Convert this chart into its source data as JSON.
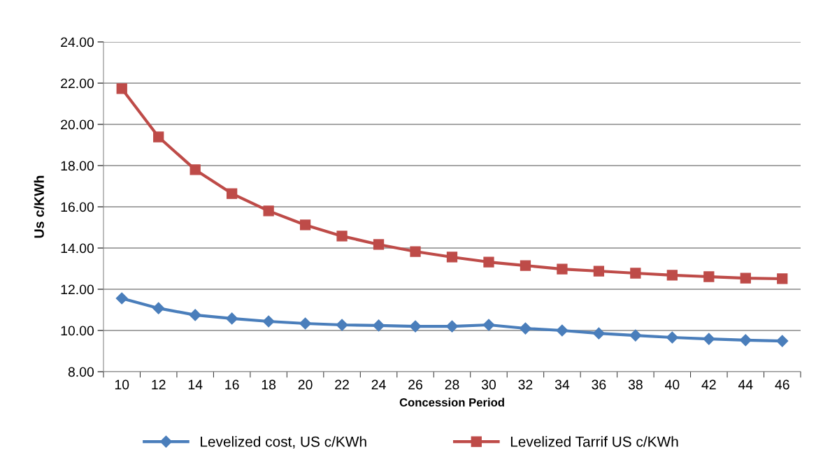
{
  "chart_data": {
    "type": "line",
    "xlabel": "Concession Period",
    "ylabel": "Us c/KWh",
    "categories": [
      "10",
      "12",
      "14",
      "16",
      "18",
      "20",
      "22",
      "24",
      "26",
      "28",
      "30",
      "32",
      "34",
      "36",
      "38",
      "40",
      "42",
      "44",
      "46"
    ],
    "series": [
      {
        "name": "Levelized cost, US c/KWh",
        "color": "#4a7ebb",
        "marker": "diamond",
        "values": [
          11.56,
          11.08,
          10.75,
          10.58,
          10.44,
          10.34,
          10.27,
          10.24,
          10.2,
          10.2,
          10.27,
          10.1,
          10.0,
          9.86,
          9.76,
          9.66,
          9.59,
          9.53,
          9.49
        ]
      },
      {
        "name": "Levelized Tarrif US c/KWh",
        "color": "#be4b48",
        "marker": "square",
        "values": [
          21.73,
          19.39,
          17.8,
          16.64,
          15.8,
          15.12,
          14.58,
          14.17,
          13.83,
          13.56,
          13.32,
          13.15,
          12.98,
          12.88,
          12.78,
          12.68,
          12.61,
          12.54,
          12.51
        ]
      }
    ],
    "ylim": [
      8,
      24
    ],
    "yticks": [
      {
        "value": 8,
        "label": "8.00"
      },
      {
        "value": 10,
        "label": "10.00"
      },
      {
        "value": 12,
        "label": "12.00"
      },
      {
        "value": 14,
        "label": "14.00"
      },
      {
        "value": 16,
        "label": "16.00"
      },
      {
        "value": 18,
        "label": "18.00"
      },
      {
        "value": 20,
        "label": "20.00"
      },
      {
        "value": 22,
        "label": "22.00"
      },
      {
        "value": 24,
        "label": "24.00"
      }
    ],
    "grid": "y",
    "legend": "bottom",
    "line_style": "solid"
  }
}
